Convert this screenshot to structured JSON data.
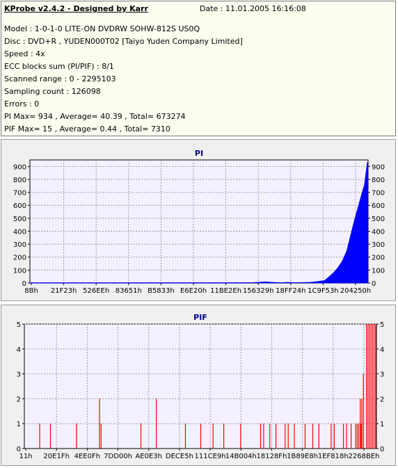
{
  "header": {
    "app_title": "KProbe v2.4.2 - Designed by Karr",
    "date": "Date : 11.01.2005 16:16:08",
    "lines": [
      "Model : 1-0-1-0 LITE-ON DVDRW SOHW-812S  US0Q",
      "Disc : DVD+R , YUDEN000T02 [Taiyo Yuden Company Limited]",
      "Speed : 4x",
      "ECC blocks sum (PI/PIF) : 8/1",
      "Scanned range : 0 - 2295103",
      "Sampling count : 126098",
      "Errors : 0",
      "PI Max= 934 , Average= 40.39 , Total= 673274",
      "PIF Max= 15 , Average= 0.44 , Total= 7310"
    ]
  },
  "chart_data": [
    {
      "type": "area",
      "title": "PI",
      "color": "#0000ff",
      "ylim": [
        0,
        950
      ],
      "yticks": [
        0,
        100,
        200,
        300,
        400,
        500,
        600,
        700,
        800,
        900
      ],
      "xlim": [
        0,
        2295103
      ],
      "xtick_labels": [
        "8Bh",
        "21F23h",
        "526EEh",
        "83651h",
        "B5833h",
        "E6E20h",
        "11BE2Eh",
        "156329h",
        "18FF24h",
        "1C9F53h",
        "204250h"
      ],
      "grid": true,
      "series": [
        {
          "x": [
            0,
            1500000,
            1550000,
            1600000,
            1650000,
            1700000,
            1750000,
            1800000,
            1850000,
            1900000,
            1950000,
            2000000,
            2030000,
            2060000,
            2090000,
            2120000,
            2150000,
            2170000,
            2190000,
            2210000,
            2230000,
            2250000,
            2270000,
            2280000,
            2290000,
            2295103
          ],
          "y": [
            3,
            4,
            6,
            10,
            6,
            4,
            6,
            4,
            5,
            6,
            12,
            20,
            50,
            80,
            120,
            170,
            250,
            340,
            430,
            520,
            600,
            680,
            760,
            850,
            934,
            900
          ]
        }
      ]
    },
    {
      "type": "bar",
      "title": "PIF",
      "color": "#ff0000",
      "ylim": [
        0,
        5
      ],
      "yticks": [
        0,
        1,
        2,
        3,
        4,
        5
      ],
      "xlim": [
        0,
        2295103
      ],
      "xtick_labels": [
        "11h",
        "20E1Fh",
        "4EE0Fh",
        "7DD00h",
        "AE0E3h",
        "DECE5h",
        "111CE9h",
        "14B004h",
        "18128Fh",
        "1B89E8h",
        "1EF818h",
        "2268BEh"
      ],
      "grid": true,
      "series": [
        {
          "x": [
            100000,
            170000,
            340000,
            490000,
            500000,
            760000,
            860000,
            1050000,
            1150000,
            1230000,
            1300000,
            1410000,
            1540000,
            1560000,
            1600000,
            1640000,
            1700000,
            1720000,
            1760000,
            1830000,
            1880000,
            1920000,
            2000000,
            2020000,
            2080000,
            2100000,
            2130000,
            2160000,
            2170000,
            2180000,
            2190000,
            2195000,
            2200000,
            2210000,
            2230000,
            2240000,
            2250000,
            2260000,
            2270000,
            2280000,
            2290000
          ],
          "y": [
            1,
            1,
            1,
            2,
            1,
            1,
            2,
            1,
            1,
            1,
            1,
            1,
            1,
            1,
            1,
            1,
            1,
            1,
            1,
            1,
            1,
            1,
            1,
            1,
            1,
            1,
            1,
            1,
            1,
            1,
            2,
            1,
            2,
            3,
            5,
            5,
            5,
            5,
            5,
            5,
            5
          ]
        }
      ]
    }
  ]
}
